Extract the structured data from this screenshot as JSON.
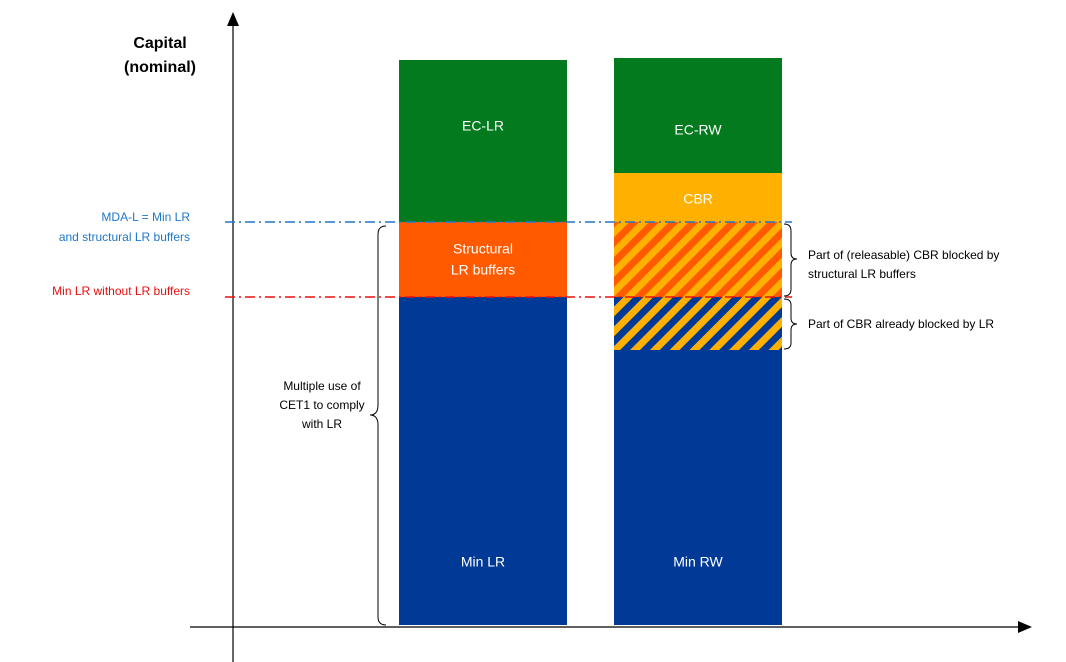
{
  "axis_label": [
    "Capital",
    "(nominal)"
  ],
  "reference_lines": [
    {
      "label": [
        "MDA-L = Min LR",
        "and structural LR buffers"
      ]
    },
    {
      "label": [
        "Min LR without LR buffers"
      ]
    }
  ],
  "bars": [
    {
      "segments": [
        {
          "label": [
            "EC-LR"
          ]
        },
        {
          "label": [
            "Structural",
            "LR buffers"
          ]
        },
        {
          "label": [
            "Min LR"
          ]
        }
      ]
    },
    {
      "segments": [
        {
          "label": [
            "EC-RW"
          ]
        },
        {
          "label": [
            "CBR"
          ]
        },
        {
          "label": [
            "Min RW"
          ]
        }
      ]
    }
  ],
  "annotations": [
    {
      "label": [
        "Multiple use of",
        "CET1 to comply",
        "with LR"
      ]
    },
    {
      "label": [
        "Part of (releasable) CBR blocked by",
        "structural LR buffers"
      ]
    },
    {
      "label": [
        "Part of CBR already blocked by LR"
      ]
    }
  ]
}
